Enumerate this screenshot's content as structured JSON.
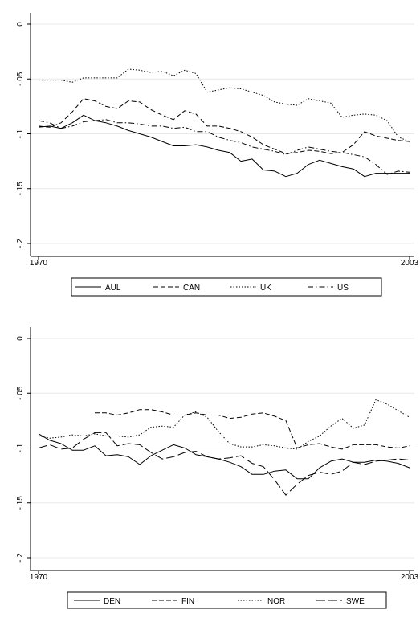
{
  "chart_data": [
    {
      "type": "line",
      "title": "",
      "xlabel": "",
      "ylabel": "",
      "x_tick_labels": [
        "1970",
        "2003"
      ],
      "y_ticks": [
        0,
        -0.05,
        -0.1,
        -0.15,
        -0.2
      ],
      "y_tick_labels": [
        "0",
        "-.05",
        "-.1",
        "-.15",
        "-.2"
      ],
      "xlim": [
        1970,
        2003
      ],
      "ylim": [
        -0.2,
        0
      ],
      "grid": "horizontal",
      "legend_position": "bottom",
      "x": [
        1970,
        1971,
        1972,
        1973,
        1974,
        1975,
        1976,
        1977,
        1978,
        1979,
        1980,
        1981,
        1982,
        1983,
        1984,
        1985,
        1986,
        1987,
        1988,
        1989,
        1990,
        1991,
        1992,
        1993,
        1994,
        1995,
        1996,
        1997,
        1998,
        1999,
        2000,
        2001,
        2002,
        2003
      ],
      "series": [
        {
          "name": "AUL",
          "dash": "solid",
          "values": [
            -0.094,
            -0.093,
            -0.095,
            -0.09,
            -0.083,
            -0.088,
            -0.09,
            -0.093,
            -0.097,
            -0.1,
            -0.103,
            -0.107,
            -0.111,
            -0.111,
            -0.11,
            -0.112,
            -0.115,
            -0.117,
            -0.125,
            -0.123,
            -0.133,
            -0.134,
            -0.139,
            -0.136,
            -0.128,
            -0.124,
            -0.127,
            -0.13,
            -0.132,
            -0.139,
            -0.136,
            -0.136,
            -0.136,
            -0.136
          ]
        },
        {
          "name": "CAN",
          "dash": "dash",
          "values": [
            -0.093,
            -0.094,
            -0.09,
            -0.08,
            -0.068,
            -0.07,
            -0.075,
            -0.077,
            -0.07,
            -0.071,
            -0.078,
            -0.083,
            -0.087,
            -0.079,
            -0.082,
            -0.093,
            -0.093,
            -0.095,
            -0.098,
            -0.103,
            -0.11,
            -0.114,
            -0.118,
            -0.117,
            -0.115,
            -0.116,
            -0.118,
            -0.117,
            -0.11,
            -0.098,
            -0.102,
            -0.104,
            -0.106,
            -0.107
          ]
        },
        {
          "name": "UK",
          "dash": "dot",
          "values": [
            -0.051,
            -0.051,
            -0.051,
            -0.053,
            -0.049,
            -0.049,
            -0.049,
            -0.049,
            -0.041,
            -0.042,
            -0.044,
            -0.043,
            -0.047,
            -0.042,
            -0.045,
            -0.062,
            -0.06,
            -0.058,
            -0.059,
            -0.062,
            -0.065,
            -0.071,
            -0.073,
            -0.074,
            -0.068,
            -0.07,
            -0.072,
            -0.085,
            -0.083,
            -0.082,
            -0.083,
            -0.088,
            -0.103,
            -0.107
          ]
        },
        {
          "name": "US",
          "dash": "dashdot",
          "values": [
            -0.088,
            -0.09,
            -0.095,
            -0.093,
            -0.089,
            -0.088,
            -0.087,
            -0.09,
            -0.09,
            -0.091,
            -0.093,
            -0.093,
            -0.095,
            -0.094,
            -0.098,
            -0.098,
            -0.103,
            -0.106,
            -0.108,
            -0.112,
            -0.114,
            -0.116,
            -0.119,
            -0.115,
            -0.112,
            -0.114,
            -0.116,
            -0.117,
            -0.119,
            -0.121,
            -0.128,
            -0.137,
            -0.134,
            -0.135
          ]
        }
      ]
    },
    {
      "type": "line",
      "title": "",
      "xlabel": "",
      "ylabel": "",
      "x_tick_labels": [
        "1970",
        "2003"
      ],
      "y_ticks": [
        0,
        -0.05,
        -0.1,
        -0.15,
        -0.2
      ],
      "y_tick_labels": [
        "0",
        "-.05",
        "-.1",
        "-.15",
        "-.2"
      ],
      "xlim": [
        1970,
        2003
      ],
      "ylim": [
        -0.2,
        0
      ],
      "grid": "horizontal",
      "legend_position": "bottom",
      "x": [
        1970,
        1971,
        1972,
        1973,
        1974,
        1975,
        1976,
        1977,
        1978,
        1979,
        1980,
        1981,
        1982,
        1983,
        1984,
        1985,
        1986,
        1987,
        1988,
        1989,
        1990,
        1991,
        1992,
        1993,
        1994,
        1995,
        1996,
        1997,
        1998,
        1999,
        2000,
        2001,
        2002,
        2003
      ],
      "series": [
        {
          "name": "DEN",
          "dash": "solid",
          "values": [
            -0.087,
            -0.093,
            -0.096,
            -0.102,
            -0.102,
            -0.098,
            -0.107,
            -0.106,
            -0.108,
            -0.115,
            -0.107,
            -0.102,
            -0.097,
            -0.1,
            -0.106,
            -0.108,
            -0.11,
            -0.113,
            -0.117,
            -0.124,
            -0.124,
            -0.121,
            -0.12,
            -0.128,
            -0.128,
            -0.118,
            -0.112,
            -0.11,
            -0.113,
            -0.113,
            -0.111,
            -0.112,
            -0.114,
            -0.118
          ]
        },
        {
          "name": "FIN",
          "dash": "dash",
          "values": [
            null,
            null,
            null,
            null,
            null,
            -0.068,
            -0.068,
            -0.07,
            -0.068,
            -0.065,
            -0.065,
            -0.067,
            -0.07,
            -0.07,
            -0.068,
            -0.07,
            -0.07,
            -0.073,
            -0.072,
            -0.069,
            -0.068,
            -0.071,
            -0.075,
            -0.1,
            -0.097,
            -0.096,
            -0.099,
            -0.101,
            -0.097,
            -0.097,
            -0.097,
            -0.099,
            -0.1,
            -0.098
          ]
        },
        {
          "name": "NOR",
          "dash": "dot",
          "values": [
            -0.089,
            -0.091,
            -0.09,
            -0.088,
            -0.089,
            -0.087,
            -0.089,
            -0.089,
            -0.09,
            -0.088,
            -0.081,
            -0.08,
            -0.081,
            -0.07,
            -0.067,
            -0.072,
            -0.085,
            -0.096,
            -0.099,
            -0.099,
            -0.097,
            -0.098,
            -0.1,
            -0.101,
            -0.094,
            -0.089,
            -0.08,
            -0.073,
            -0.082,
            -0.079,
            -0.056,
            -0.06,
            -0.066,
            -0.072
          ]
        },
        {
          "name": "SWE",
          "dash": "longdash",
          "values": [
            -0.1,
            -0.097,
            -0.101,
            -0.1,
            -0.092,
            -0.086,
            -0.086,
            -0.098,
            -0.096,
            -0.097,
            -0.104,
            -0.11,
            -0.108,
            -0.104,
            -0.103,
            -0.108,
            -0.11,
            -0.109,
            -0.107,
            -0.114,
            -0.117,
            -0.129,
            -0.143,
            -0.133,
            -0.125,
            -0.122,
            -0.124,
            -0.121,
            -0.113,
            -0.115,
            -0.112,
            -0.111,
            -0.11,
            -0.111
          ]
        }
      ]
    }
  ]
}
